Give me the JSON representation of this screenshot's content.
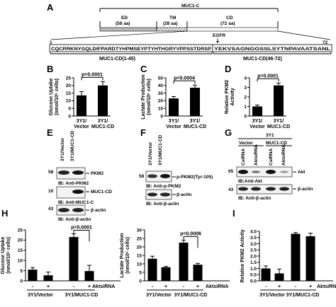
{
  "panel_letters": [
    "A",
    "B",
    "C",
    "D",
    "E",
    "F",
    "G",
    "H",
    "I"
  ],
  "panelA": {
    "protein": "MUC1-C",
    "domains": [
      {
        "name": "ED",
        "size": "(58 aa)"
      },
      {
        "name": "TM",
        "size": "(28 aa)"
      },
      {
        "name": "CD",
        "size": "(72 aa)"
      }
    ],
    "start": "1",
    "end": "72",
    "egfr": "EGFR",
    "seq_part1": "CQCRRKNYGQLDIFPARDTYHPMSEYPTYHTHGRYVPPSSTDRSP",
    "seq_part2": "YEKVSAGNGGSSLSYTNPAVAATSANL",
    "label1": "MUC1-CD(1-45)",
    "label2": "MUC1-CD(46-72)"
  },
  "panelE": {
    "lanes": [
      "3Y1/Vector",
      "3Y1/MUC1-CD"
    ],
    "blots": [
      {
        "mw": "58",
        "target": "PKM2",
        "ib": "IB: Anti-PKM2"
      },
      {
        "mw": "10",
        "target": "MUC1-CD",
        "ib": "IB: Anti-MUC1-C"
      },
      {
        "mw": "43",
        "target": "β-actin",
        "ib": "IB: Anti-β-actin"
      }
    ]
  },
  "panelF": {
    "lanes": [
      "3Y1/Vector",
      "3Y1/MUC1-CD"
    ],
    "blots": [
      {
        "mw": "58",
        "target": "p-PKM2(Tyr-105)",
        "ib": "IB: Anti-p-PKM2"
      },
      {
        "mw": "",
        "target": "β-actin",
        "ib": "IB: Anti-β-actin"
      }
    ]
  },
  "panelG": {
    "header": "3Y1",
    "groups": [
      "Vector",
      "MUC1-CD"
    ],
    "lanes": [
      "CsiRNA",
      "AktsiRNA",
      "CsiRNA",
      "AktsiRNA"
    ],
    "blots": [
      {
        "mw": "65",
        "target": "Akt",
        "ib": "IB:Anti-Akt"
      },
      {
        "mw": "43",
        "target": "β-actin",
        "ib": "IB: Anti-β-actin"
      }
    ]
  },
  "chart_data": [
    {
      "panel": "B",
      "type": "bar",
      "categories": [
        "3Y1/ Vector",
        "3Y1/ MUC1-CD"
      ],
      "values": [
        13.5,
        20
      ],
      "errors": [
        2.5,
        2.5
      ],
      "ylabel": "Glucose Uptake (nmol/10⁶ cells)",
      "ylim": [
        0,
        25
      ],
      "yticks": [
        "0",
        "5",
        "10",
        "15",
        "20",
        "25"
      ],
      "annotation": "p=0.0001"
    },
    {
      "panel": "C",
      "type": "bar",
      "categories": [
        "3Y1/ Vector",
        "3Y1/ MUC1-CD"
      ],
      "values": [
        23,
        37
      ],
      "errors": [
        2.5,
        3.5
      ],
      "ylabel": "Lactate Production (nmol/10⁶ cells)",
      "ylim": [
        0,
        50
      ],
      "yticks": [
        "0",
        "10",
        "20",
        "30",
        "40",
        "50"
      ],
      "annotation": "p=0.0004"
    },
    {
      "panel": "D",
      "type": "bar",
      "categories": [
        "3Y1/ Vector",
        "3Y1/ MUC1-CD"
      ],
      "values": [
        1,
        3.2
      ],
      "errors": [
        0.15,
        0.25
      ],
      "ylabel": "Relative PKM2 Activity",
      "ylim": [
        0,
        4
      ],
      "yticks": [
        "0",
        "1",
        "2",
        "3",
        "4"
      ],
      "annotation": "p=0.0001"
    },
    {
      "panel": "H1",
      "type": "bar",
      "categories": [
        "-",
        "+",
        "-",
        "+"
      ],
      "groups": [
        "3Y1/Vector",
        "3Y1/MUC1-CD"
      ],
      "treatment": "AktsiRNA",
      "values": [
        5.5,
        2.7,
        21.5,
        4.8
      ],
      "errors": [
        1.0,
        1.6,
        1.6,
        2.8
      ],
      "ylabel": "Glucose Uptake (nmol/10⁶ cells)",
      "ylim": [
        0,
        25
      ],
      "yticks": [
        "0",
        "5",
        "10",
        "15",
        "20",
        "25"
      ],
      "annotation": "p=0.0001"
    },
    {
      "panel": "H2",
      "type": "bar",
      "categories": [
        "-",
        "+",
        "-",
        "+"
      ],
      "groups": [
        "3Y1/Vector",
        "3Y1/MUC1-CD"
      ],
      "treatment": "AktsiRNA",
      "values": [
        13,
        8,
        22.5,
        9.5
      ],
      "errors": [
        1.5,
        0.5,
        1.5,
        0.8
      ],
      "ylabel": "Lactate Production (nmol/10⁶ cells)",
      "ylim": [
        0,
        30
      ],
      "yticks": [
        "0",
        "5",
        "10",
        "15",
        "20",
        "25",
        "30"
      ],
      "annotation": "p=0.0006"
    },
    {
      "panel": "I",
      "type": "bar",
      "categories": [
        "-",
        "+",
        "-",
        "+"
      ],
      "groups": [
        "3Y1/Vector",
        "3Y1/MUC1-CD"
      ],
      "treatment": "AktsiRNA",
      "values": [
        1.0,
        0.6,
        3.8,
        3.6
      ],
      "errors": [
        0.2,
        0.35,
        0.1,
        0.25
      ],
      "ylabel": "Relative PKM2 Activity",
      "ylim": [
        0,
        4
      ],
      "yticks": [
        "0.0",
        "0.5",
        "1.0",
        "1.5",
        "2.0",
        "2.5",
        "3.0",
        "3.5",
        "4.0"
      ],
      "annotation": ""
    }
  ]
}
